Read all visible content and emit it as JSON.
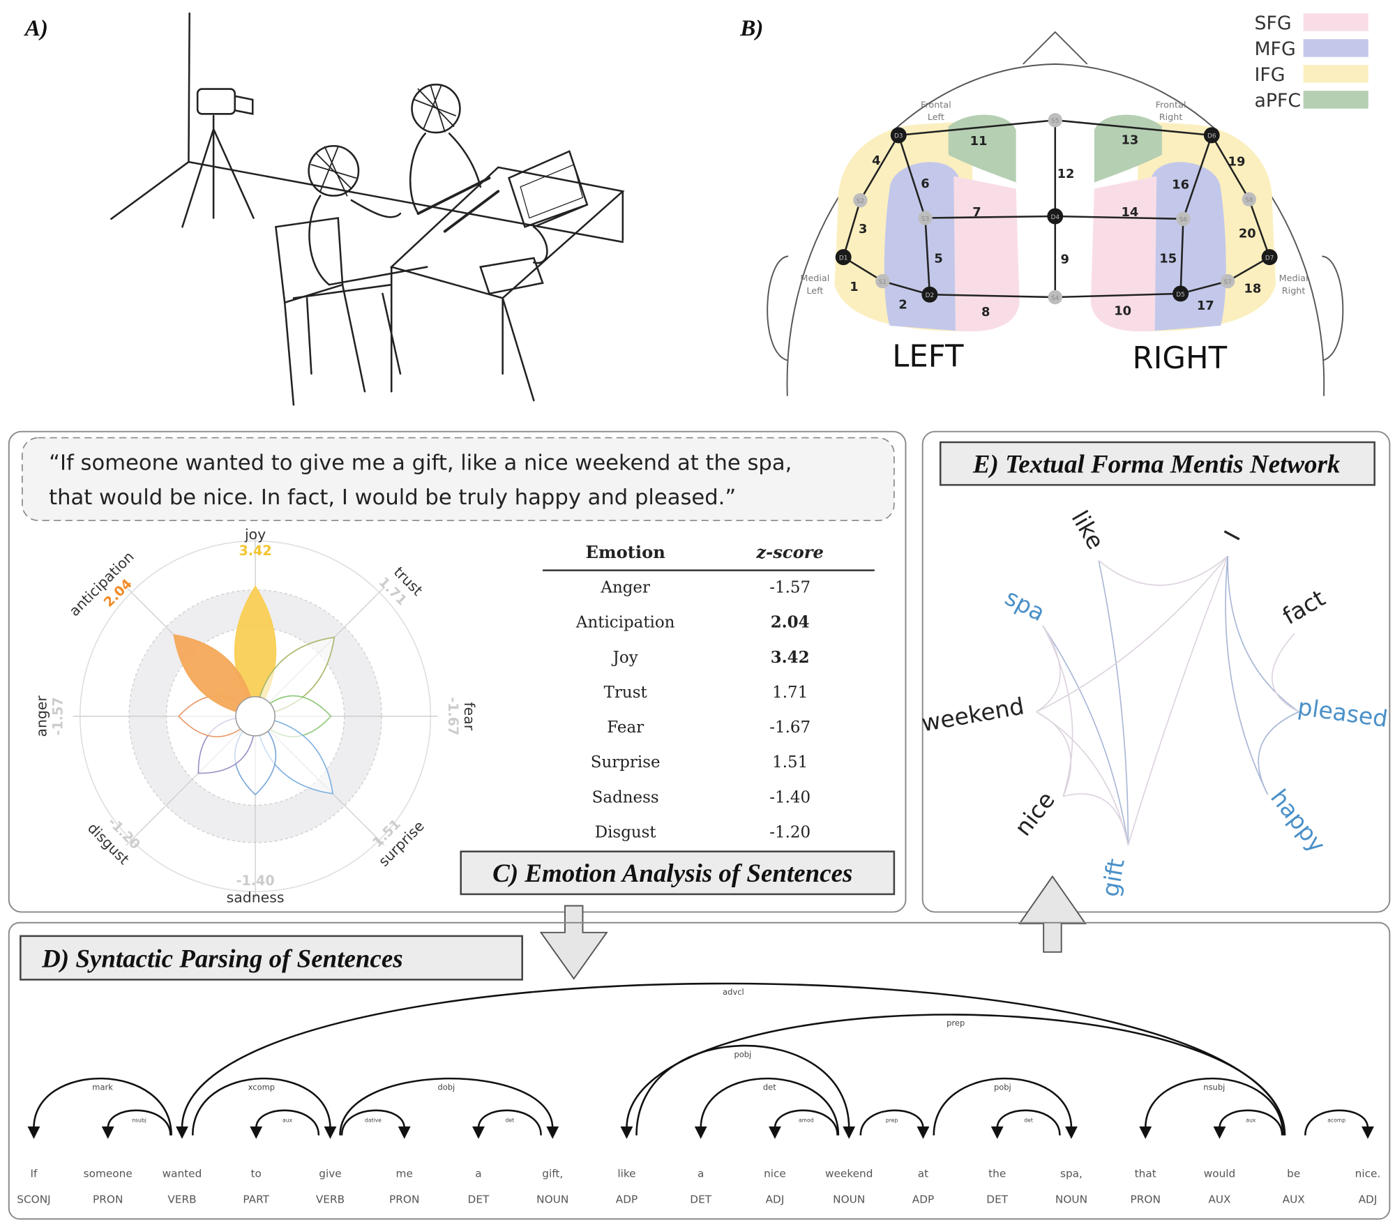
{
  "panel_a": {
    "label": "A)"
  },
  "panel_b": {
    "label": "B)",
    "legend": [
      {
        "name": "SFG",
        "color": "#f9dde6"
      },
      {
        "name": "MFG",
        "color": "#c3c8ea"
      },
      {
        "name": "IFG",
        "color": "#fbefbf"
      },
      {
        "name": "aPFC",
        "color": "#b5cfb3"
      }
    ],
    "frontal_left": [
      "Frontal",
      "Left"
    ],
    "frontal_right": [
      "Frontal",
      "Right"
    ],
    "medial_left": [
      "Medial",
      "Left"
    ],
    "medial_right": [
      "Medial",
      "Right"
    ],
    "left": "LEFT",
    "right": "RIGHT",
    "detectors": [
      "D1",
      "D2",
      "D3",
      "D4",
      "D5",
      "D6",
      "D7"
    ],
    "sources": [
      "S1",
      "S2",
      "S3",
      "S4",
      "S5",
      "S6",
      "S7",
      "S8"
    ],
    "channels": [
      "1",
      "2",
      "3",
      "4",
      "5",
      "6",
      "7",
      "8",
      "9",
      "10",
      "11",
      "12",
      "13",
      "14",
      "15",
      "16",
      "17",
      "18",
      "19",
      "20"
    ]
  },
  "panel_c": {
    "quote": [
      "“If someone wanted to give me a gift, like a nice weekend at the spa,",
      "that would be nice. In fact, I would be truly happy and pleased.”"
    ],
    "title": "C) Emotion Analysis of Sentences",
    "table_header": {
      "emotion": "Emotion",
      "score": "z-score"
    },
    "table_rows": [
      {
        "emotion": "Anger",
        "score": "-1.57",
        "bold": false
      },
      {
        "emotion": "Anticipation",
        "score": "2.04",
        "bold": true
      },
      {
        "emotion": "Joy",
        "score": "3.42",
        "bold": true
      },
      {
        "emotion": "Trust",
        "score": "1.71",
        "bold": false
      },
      {
        "emotion": "Fear",
        "score": "-1.67",
        "bold": false
      },
      {
        "emotion": "Surprise",
        "score": "1.51",
        "bold": false
      },
      {
        "emotion": "Sadness",
        "score": "-1.40",
        "bold": false
      },
      {
        "emotion": "Disgust",
        "score": "-1.20",
        "bold": false
      }
    ],
    "flower": [
      {
        "name": "joy",
        "value": 3.42,
        "label": "3.42",
        "color": "#f9cf55",
        "filled": true,
        "value_color": "#f2c531"
      },
      {
        "name": "trust",
        "value": 1.71,
        "label": "1.71",
        "color": "#a8b86a",
        "filled": false,
        "value_color": "#cccccc"
      },
      {
        "name": "fear",
        "value": -1.67,
        "label": "-1.67",
        "color": "#8fc97a",
        "filled": false,
        "value_color": "#cccccc"
      },
      {
        "name": "surprise",
        "value": 1.51,
        "label": "1.51",
        "color": "#7fb0e0",
        "filled": false,
        "value_color": "#cccccc"
      },
      {
        "name": "sadness",
        "value": -1.4,
        "label": "-1.40",
        "color": "#7aa7d8",
        "filled": false,
        "value_color": "#cccccc"
      },
      {
        "name": "disgust",
        "value": -1.2,
        "label": "-1.20",
        "color": "#9a8fc5",
        "filled": false,
        "value_color": "#cccccc"
      },
      {
        "name": "anger",
        "value": -1.57,
        "label": "-1.57",
        "color": "#e89a6a",
        "filled": false,
        "value_color": "#cccccc"
      },
      {
        "name": "anticipation",
        "value": 2.04,
        "label": "2.04",
        "color": "#f4a95a",
        "filled": true,
        "value_color": "#f08c28"
      }
    ]
  },
  "panel_d": {
    "title": "D) Syntactic Parsing of Sentences",
    "words": [
      "If",
      "someone",
      "wanted",
      "to",
      "give",
      "me",
      "a",
      "gift,",
      "like",
      "a",
      "nice",
      "weekend",
      "at",
      "the",
      "spa,",
      "that",
      "would",
      "be",
      "nice."
    ],
    "tags": [
      "SCONJ",
      "PRON",
      "VERB",
      "PART",
      "VERB",
      "PRON",
      "DET",
      "NOUN",
      "ADP",
      "DET",
      "ADJ",
      "NOUN",
      "ADP",
      "DET",
      "NOUN",
      "PRON",
      "AUX",
      "AUX",
      "ADJ"
    ],
    "dependencies": [
      {
        "head": 2,
        "dep": 0,
        "label": "mark"
      },
      {
        "head": 2,
        "dep": 1,
        "label": "nsubj"
      },
      {
        "head": 17,
        "dep": 2,
        "label": "advcl"
      },
      {
        "head": 2,
        "dep": 4,
        "label": "xcomp"
      },
      {
        "head": 4,
        "dep": 3,
        "label": "aux"
      },
      {
        "head": 4,
        "dep": 5,
        "label": "dative"
      },
      {
        "head": 4,
        "dep": 7,
        "label": "dobj"
      },
      {
        "head": 7,
        "dep": 6,
        "label": "det"
      },
      {
        "head": 17,
        "dep": 8,
        "label": "prep"
      },
      {
        "head": 8,
        "dep": 11,
        "label": "pobj"
      },
      {
        "head": 11,
        "dep": 9,
        "label": "det"
      },
      {
        "head": 11,
        "dep": 10,
        "label": "amod"
      },
      {
        "head": 11,
        "dep": 12,
        "label": "prep"
      },
      {
        "head": 12,
        "dep": 14,
        "label": "pobj"
      },
      {
        "head": 14,
        "dep": 13,
        "label": "det"
      },
      {
        "head": 17,
        "dep": 15,
        "label": "nsubj"
      },
      {
        "head": 17,
        "dep": 16,
        "label": "aux"
      },
      {
        "head": 17,
        "dep": 18,
        "label": "acomp"
      }
    ]
  },
  "panel_e": {
    "title": "E) Textual Forma Mentis Network",
    "words": [
      {
        "text": "like",
        "color": "#222222"
      },
      {
        "text": "I",
        "color": "#222222"
      },
      {
        "text": "spa",
        "color": "#4a90c8"
      },
      {
        "text": "fact",
        "color": "#222222"
      },
      {
        "text": "weekend",
        "color": "#222222"
      },
      {
        "text": "pleased",
        "color": "#4a90c8"
      },
      {
        "text": "nice",
        "color": "#222222"
      },
      {
        "text": "happy",
        "color": "#4a90c8"
      },
      {
        "text": "gift",
        "color": "#4a90c8"
      }
    ],
    "edges": [
      [
        "gift",
        "like"
      ],
      [
        "gift",
        "spa"
      ],
      [
        "gift",
        "weekend"
      ],
      [
        "gift",
        "nice"
      ],
      [
        "gift",
        "I"
      ],
      [
        "spa",
        "weekend"
      ],
      [
        "spa",
        "nice"
      ],
      [
        "weekend",
        "nice"
      ],
      [
        "like",
        "I"
      ],
      [
        "weekend",
        "I"
      ],
      [
        "I",
        "pleased"
      ],
      [
        "I",
        "happy"
      ],
      [
        "fact",
        "pleased"
      ],
      [
        "pleased",
        "happy"
      ]
    ]
  }
}
